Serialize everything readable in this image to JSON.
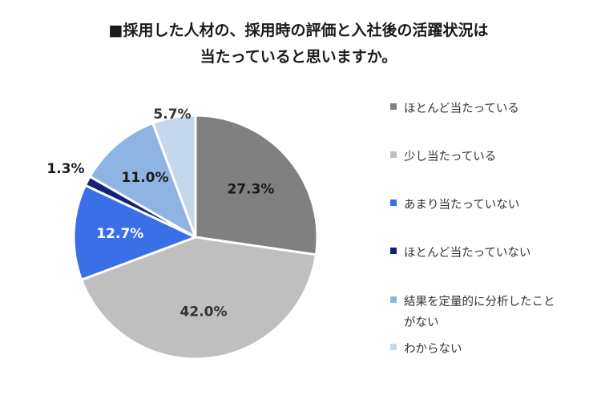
{
  "title_lines": [
    "■採用した人材の、採用時の評価と入社後の活躍状況は",
    "当たっていると思いますか。"
  ],
  "chart_data": {
    "type": "pie",
    "title": "■採用した人材の、採用時の評価と入社後の活躍状況は当たっていると思いますか。",
    "unit": "%",
    "slices": [
      {
        "label": "ほとんど当たっている",
        "value": 27.3,
        "display": "27.3%",
        "color": "#808080"
      },
      {
        "label": "少し当たっている",
        "value": 42.0,
        "display": "42.0%",
        "color": "#bfbfbf"
      },
      {
        "label": "あまり当たっていない",
        "value": 12.7,
        "display": "12.7%",
        "color": "#3b6fe8"
      },
      {
        "label": "ほとんど当たっていない",
        "value": 1.3,
        "display": "1.3%",
        "color": "#10237a"
      },
      {
        "label": "結果を定量的に分析したことがない",
        "value": 11.0,
        "display": "11.0%",
        "color": "#8eb4e3"
      },
      {
        "label": "わからない",
        "value": 5.7,
        "display": "5.7%",
        "color": "#c5d7ec"
      }
    ],
    "start_angle": "12 o'clock",
    "direction": "clockwise",
    "legend_position": "right"
  }
}
